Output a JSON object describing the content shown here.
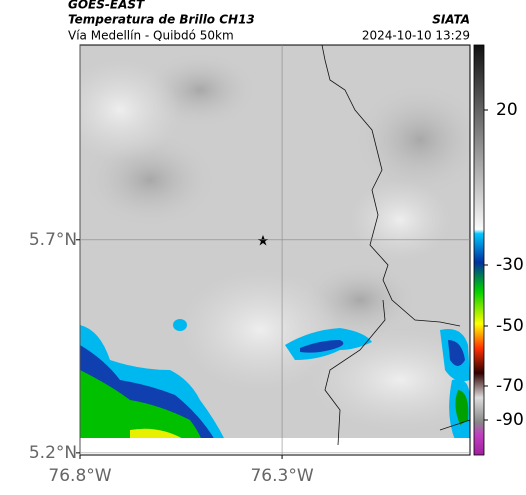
{
  "header": {
    "title": "GOES-EAST",
    "subtitle": "Temperatura de Brillo CH13",
    "route": "Vía Medellín - Quibdó 50km",
    "source": "SIATA",
    "timestamp": "2024-10-10 13:29"
  },
  "map": {
    "xlim": [
      -76.8,
      -75.835
    ],
    "ylim": [
      5.195,
      6.157
    ],
    "xticks": [
      {
        "value": -76.8,
        "label": "76.8°W"
      },
      {
        "value": -76.3,
        "label": "76.3°W"
      }
    ],
    "yticks": [
      {
        "value": 5.7,
        "label": "5.7°N"
      },
      {
        "value": 5.2,
        "label": "5.2°N"
      }
    ]
  },
  "colorbar": {
    "ticks": [
      20,
      -30,
      -50,
      -70,
      -90
    ]
  }
}
